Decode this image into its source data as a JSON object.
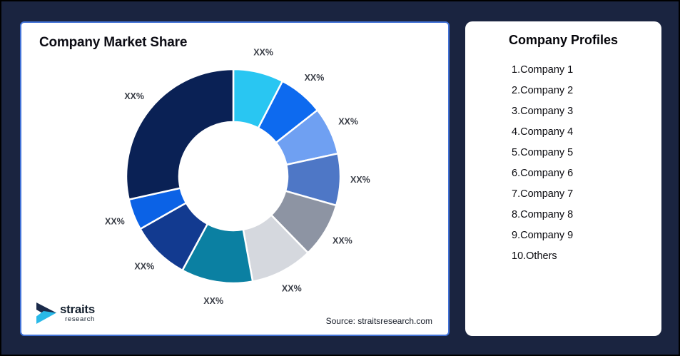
{
  "page": {
    "background_color": "#1A2440",
    "card_border_color": "#4272D6"
  },
  "chart_card": {
    "title": "Company Market Share",
    "source": "Source: straitsresearch.com",
    "logo": {
      "name": "straits",
      "sub": "research",
      "icon_navy": "#1B2A4A",
      "icon_cyan": "#29B9E8"
    }
  },
  "profiles_card": {
    "title": "Company Profiles",
    "items": [
      "1.Company 1",
      "2.Company 2",
      "3.Company 3",
      "4.Company 4",
      "5.Company 5",
      "6.Company 6",
      "7.Company 7",
      "8.Company 8",
      "9.Company 9",
      "10.Others"
    ]
  },
  "chart_data": {
    "type": "pie",
    "title": "Company Market Share",
    "donut": true,
    "start_angle_deg": 0,
    "direction": "clockwise",
    "legend_position": "none",
    "label_color": "#3A3E47",
    "segments": [
      {
        "name": "Company 1",
        "label": "XX%",
        "value": 7.6,
        "color": "#29C6F2"
      },
      {
        "name": "Company 2",
        "label": "XX%",
        "value": 6.8,
        "color": "#0D6AEF"
      },
      {
        "name": "Company 3",
        "label": "XX%",
        "value": 7.2,
        "color": "#6FA0F2"
      },
      {
        "name": "Company 4",
        "label": "XX%",
        "value": 7.8,
        "color": "#4E77C6"
      },
      {
        "name": "Company 5",
        "label": "XX%",
        "value": 8.3,
        "color": "#8D94A3"
      },
      {
        "name": "Company 6",
        "label": "XX%",
        "value": 9.4,
        "color": "#D5D8DE"
      },
      {
        "name": "Company 7",
        "label": "XX%",
        "value": 10.8,
        "color": "#0B80A2"
      },
      {
        "name": "Company 8",
        "label": "XX%",
        "value": 8.9,
        "color": "#123A90"
      },
      {
        "name": "Company 9",
        "label": "XX%",
        "value": 4.7,
        "color": "#0B62E6"
      },
      {
        "name": "Others",
        "label": "XX%",
        "value": 28.5,
        "color": "#0A2155"
      }
    ]
  }
}
